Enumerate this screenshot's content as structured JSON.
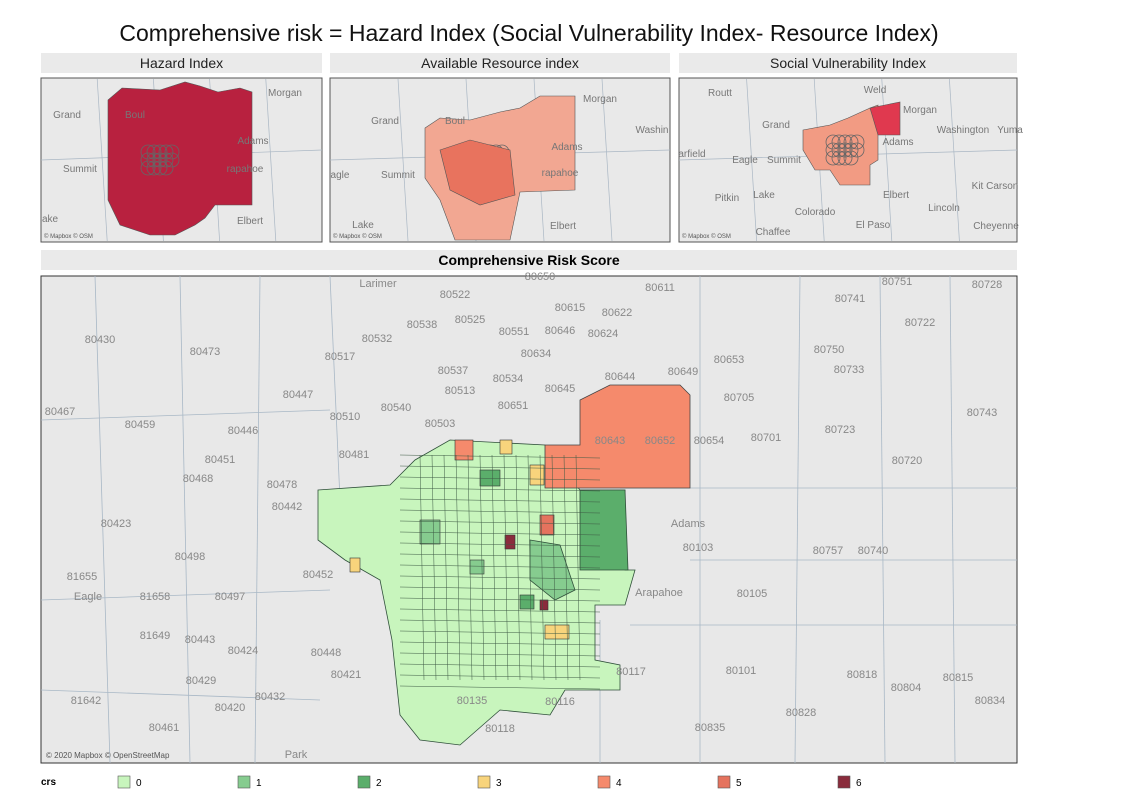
{
  "title": "Comprehensive risk = Hazard Index (Social Vulnerability Index- Resource Index)",
  "panels": [
    {
      "title": "Hazard Index",
      "labels": [
        "Morgan",
        "Grand",
        "Boul",
        "Adams",
        "Summit",
        "rapahoe",
        "ake",
        "Elbert"
      ],
      "attribution": "© Mapbox © OSM"
    },
    {
      "title": "Available Resource index",
      "labels": [
        "Morgan",
        "Grand",
        "Boul",
        "Washin",
        "Adams",
        "Summit",
        "agle",
        "rapahoe",
        "Lake",
        "Elbert"
      ],
      "attribution": "© Mapbox © OSM"
    },
    {
      "title": "Social Vulnerability Index",
      "labels": [
        "Routt",
        "Weld",
        "Morgan",
        "Grand",
        "Washington",
        "Yuma",
        "Adams",
        "arfield",
        "Eagle",
        "Summit",
        "Kit Carson",
        "Pitkin",
        "Lake",
        "Elbert",
        "Colorado",
        "Lincoln",
        "El Paso",
        "Cheyenne",
        "Chaffee"
      ],
      "attribution": "© Mapbox © OSM"
    }
  ],
  "main": {
    "title": "Comprehensive Risk Score",
    "labels": [
      "Larimer",
      "80522",
      "80650",
      "80611",
      "80751",
      "80728",
      "80741",
      "80722",
      "80615",
      "80622",
      "80538",
      "80525",
      "80551",
      "80646",
      "80624",
      "80430",
      "80473",
      "80532",
      "80517",
      "80634",
      "80653",
      "80750",
      "80537",
      "80534",
      "80644",
      "80649",
      "80733",
      "80513",
      "80645",
      "80705",
      "80447",
      "80540",
      "80651",
      "80510",
      "80503",
      "80743",
      "80467",
      "80459",
      "80446",
      "80481",
      "80643",
      "80652",
      "80654",
      "80701",
      "80723",
      "80451",
      "80468",
      "80720",
      "80478",
      "80442",
      "80423",
      "Adams",
      "80103",
      "80757",
      "80740",
      "80498",
      "80452",
      "81655",
      "Eagle",
      "81658",
      "80497",
      "Arapahoe",
      "80105",
      "81649",
      "80443",
      "80424",
      "80448",
      "80421",
      "80117",
      "80101",
      "80818",
      "80815",
      "80804",
      "81642",
      "80429",
      "80432",
      "80420",
      "80135",
      "80116",
      "80828",
      "80834",
      "80461",
      "80118",
      "80835",
      "Park"
    ],
    "attribution": "© 2020 Mapbox © OpenStreetMap"
  },
  "legend": {
    "title": "crs",
    "items": [
      {
        "label": "0",
        "color": "#c8f5bd"
      },
      {
        "label": "1",
        "color": "#86cc8f"
      },
      {
        "label": "2",
        "color": "#5bae6b"
      },
      {
        "label": "3",
        "color": "#f8d47c"
      },
      {
        "label": "4",
        "color": "#f58a6c"
      },
      {
        "label": "5",
        "color": "#e5735e"
      },
      {
        "label": "6",
        "color": "#8a2c3c"
      }
    ]
  }
}
